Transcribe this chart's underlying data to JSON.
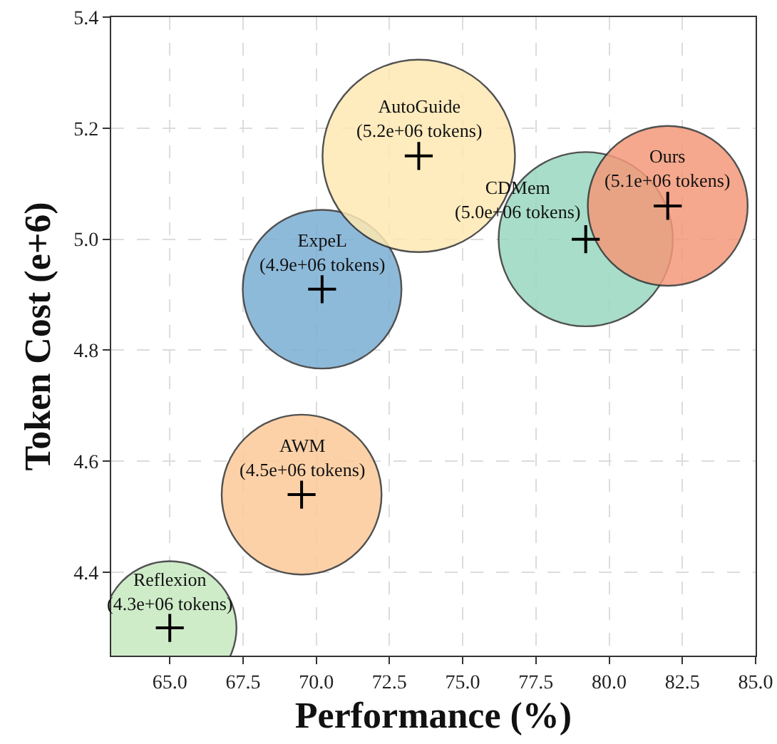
{
  "chart_data": {
    "type": "bubble",
    "xlabel": "Performance (%)",
    "ylabel": "Token Cost (e+6)",
    "x": [
      65,
      69.5,
      70.2,
      73.5,
      79.2,
      82
    ],
    "values": [
      4.3,
      4.54,
      4.91,
      5.15,
      5.0,
      5.06
    ],
    "sizes": [
      0.48,
      0.69,
      0.68,
      1,
      0.82,
      0.69
    ],
    "colors": [
      "#c7e9c0",
      "#fdca98",
      "#7bafd4",
      "#fee8b3",
      "#99d8c0",
      "#f4997a"
    ],
    "annotations": [
      {
        "text": "Reflexion\n(4.3e+06 tokens)",
        "x": 65,
        "y": 4.3
      },
      {
        "text": "AWM\n(4.5e+06 tokens)",
        "x": 69.5,
        "y": 4.54
      },
      {
        "text": "ExpeL\n(4.9e+06 tokens)",
        "x": 70.2,
        "y": 4.91
      },
      {
        "text": "AutoGuide\n(5.2e+06 tokens)",
        "x": 73.5,
        "y": 5.15
      },
      {
        "text": "CDMem\n(5.0e+06 tokens)",
        "x": 79.2,
        "y": 5.0
      },
      {
        "text": "Ours\n(5.1e+06 tokens)",
        "x": 82,
        "y": 5.06
      }
    ],
    "xlim": [
      63,
      85
    ],
    "xticks": [
      {
        "value": 65,
        "label": "65.0"
      },
      67.5,
      {
        "value": 70,
        "label": "70.0"
      },
      72.5,
      {
        "value": 75,
        "label": "75.0"
      },
      77.5,
      {
        "value": 80,
        "label": "80.0"
      },
      82.5,
      {
        "value": 85,
        "label": "85.0"
      }
    ],
    "ylim": [
      4.25,
      5.4
    ],
    "yticks": [
      4.4,
      4.6,
      4.8,
      {
        "value": 5,
        "label": "5.0"
      },
      5.2,
      5.4
    ],
    "grid": true
  }
}
